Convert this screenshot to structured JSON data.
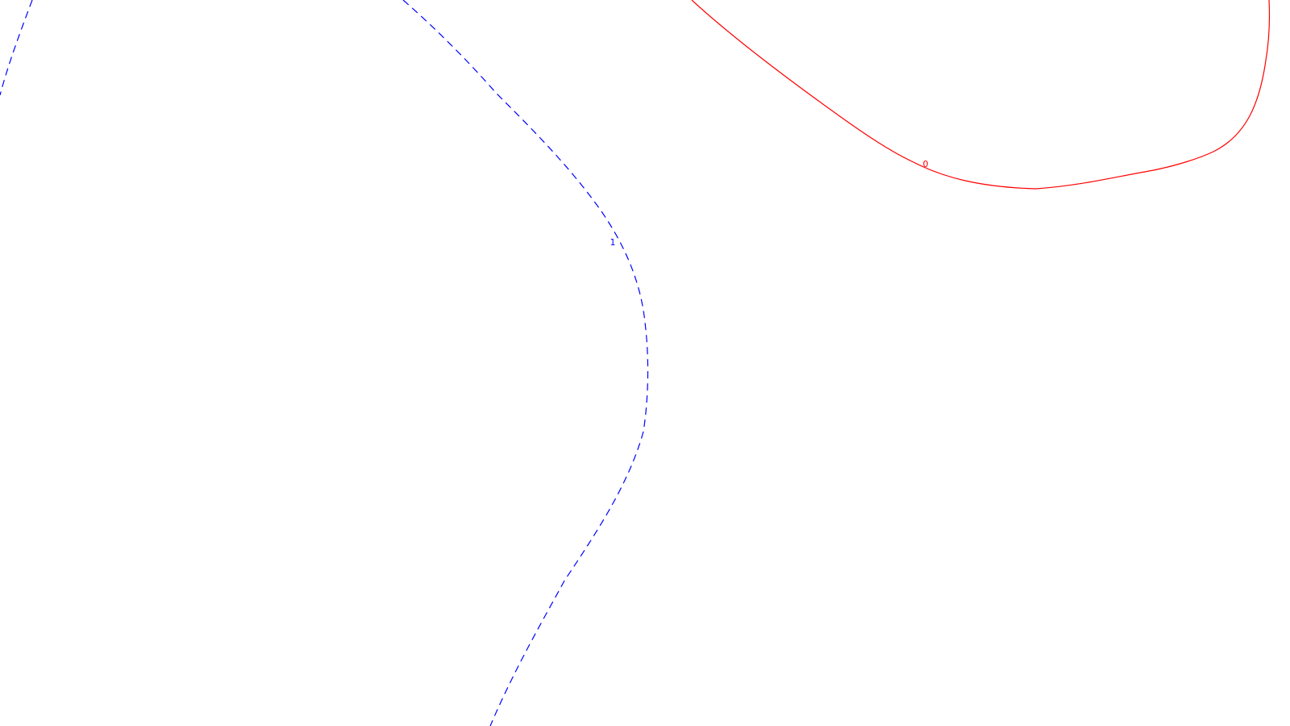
{
  "map": {
    "background_color": "#ffffff",
    "contours": [
      {
        "id": "contour-0",
        "label": "0",
        "color": "#ff0000",
        "line_style": "solid"
      },
      {
        "id": "contour-1",
        "label": "1",
        "color": "#0000ff",
        "line_style": "dashed"
      }
    ]
  }
}
